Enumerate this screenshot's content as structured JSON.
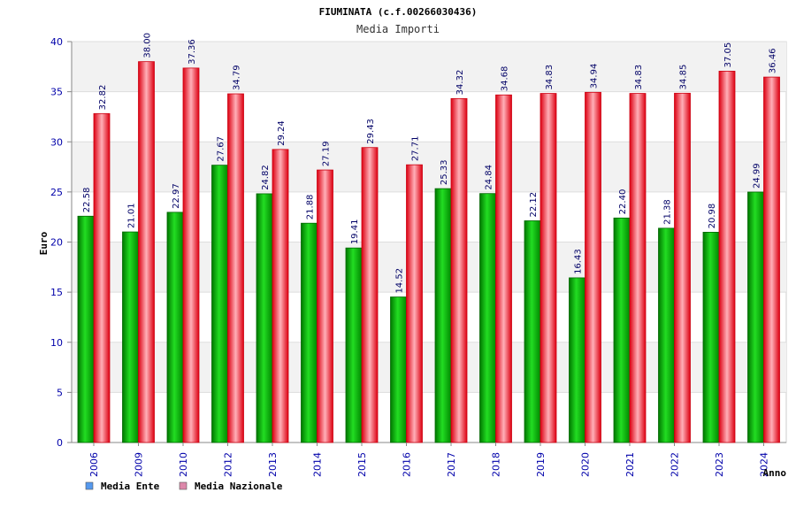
{
  "chart_data": {
    "type": "bar",
    "title": "FIUMINATA (c.f.00266030436)",
    "subtitle": "Media Importi",
    "xlabel": "Anno",
    "ylabel": "Euro",
    "ylim": [
      0,
      40
    ],
    "yticks": [
      0,
      5,
      10,
      15,
      20,
      25,
      30,
      35,
      40
    ],
    "grid": true,
    "legend_position": "bottom-left",
    "categories": [
      "2006",
      "2009",
      "2010",
      "2012",
      "2013",
      "2014",
      "2015",
      "2016",
      "2017",
      "2018",
      "2019",
      "2020",
      "2021",
      "2022",
      "2023",
      "2024"
    ],
    "series": [
      {
        "name": "Media Ente",
        "legend_color": "#5599ee",
        "bar_color": "#00aa00",
        "values": [
          22.58,
          21.01,
          22.97,
          27.67,
          24.82,
          21.88,
          19.41,
          14.52,
          25.33,
          24.84,
          22.12,
          16.43,
          22.4,
          21.38,
          20.98,
          24.99
        ],
        "labels": [
          "22.58",
          "21.01",
          "22.97",
          "27.67",
          "24.82",
          "21.88",
          "19.41",
          "14.52",
          "25.33",
          "24.84",
          "22.12",
          "16.43",
          "22.40",
          "21.38",
          "20.98",
          "24.99"
        ]
      },
      {
        "name": "Media Nazionale",
        "legend_color": "#dd88aa",
        "bar_color": "#ee1122",
        "values": [
          32.82,
          38.0,
          37.36,
          34.79,
          29.24,
          27.19,
          29.43,
          27.71,
          34.32,
          34.68,
          34.83,
          34.94,
          34.83,
          34.85,
          37.05,
          36.46
        ],
        "labels": [
          "32.82",
          "38.00",
          "37.36",
          "34.79",
          "29.24",
          "27.19",
          "29.43",
          "27.71",
          "34.32",
          "34.68",
          "34.83",
          "34.94",
          "34.83",
          "34.85",
          "37.05",
          "36.46"
        ]
      }
    ]
  }
}
